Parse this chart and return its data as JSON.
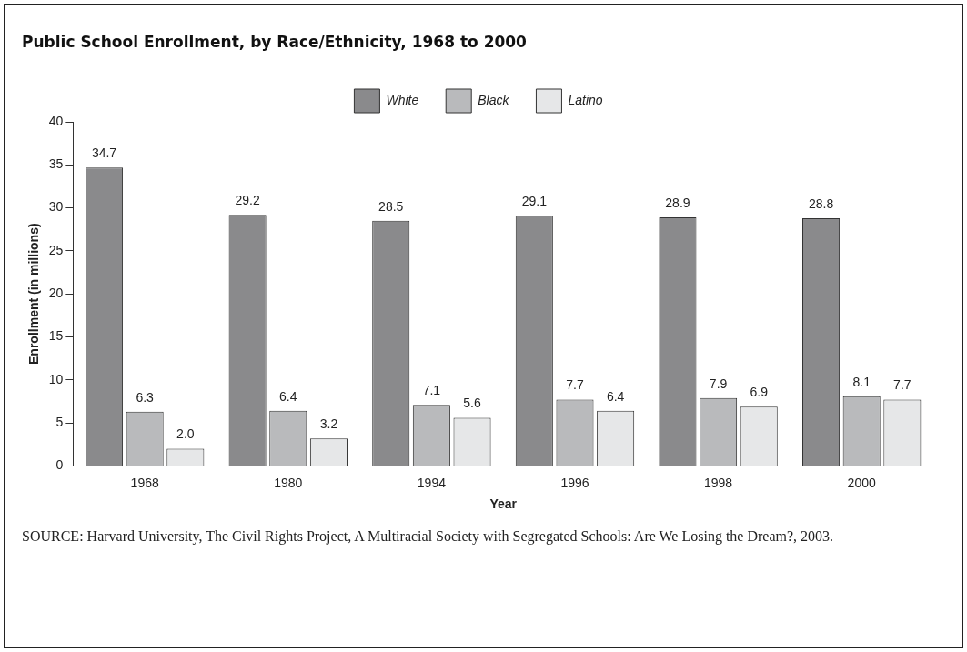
{
  "chart_data": {
    "type": "bar",
    "title": "Public School Enrollment, by Race/Ethnicity, 1968 to 2000",
    "xlabel": "Year",
    "ylabel": "Enrollment (in millions)",
    "categories": [
      "1968",
      "1980",
      "1994",
      "1996",
      "1998",
      "2000"
    ],
    "series": [
      {
        "name": "White",
        "color": "#8a8a8c",
        "values": [
          34.7,
          29.2,
          28.5,
          29.1,
          28.9,
          28.8
        ],
        "value_labels": [
          "34.7",
          "29.2",
          "28.5",
          "29.1",
          "28.9",
          "28.8"
        ]
      },
      {
        "name": "Black",
        "color": "#b9babc",
        "values": [
          6.3,
          6.4,
          7.1,
          7.7,
          7.9,
          8.1
        ],
        "value_labels": [
          "6.3",
          "6.4",
          "7.1",
          "7.7",
          "7.9",
          "8.1"
        ]
      },
      {
        "name": "Latino",
        "color": "#e6e7e8",
        "values": [
          2.0,
          3.2,
          5.6,
          6.4,
          6.9,
          7.7
        ],
        "value_labels": [
          "2.0",
          "3.2",
          "5.6",
          "6.4",
          "6.9",
          "7.7"
        ]
      }
    ],
    "ylim": [
      0,
      40
    ],
    "yticks": [
      0,
      5,
      10,
      15,
      20,
      25,
      30,
      35,
      40
    ],
    "grid": false,
    "legend": "top",
    "annotations": [
      "SOURCE: Harvard University, The Civil Rights Project, A Multiracial Society with Segregated Schools: Are We Losing the Dream?, 2003."
    ]
  }
}
